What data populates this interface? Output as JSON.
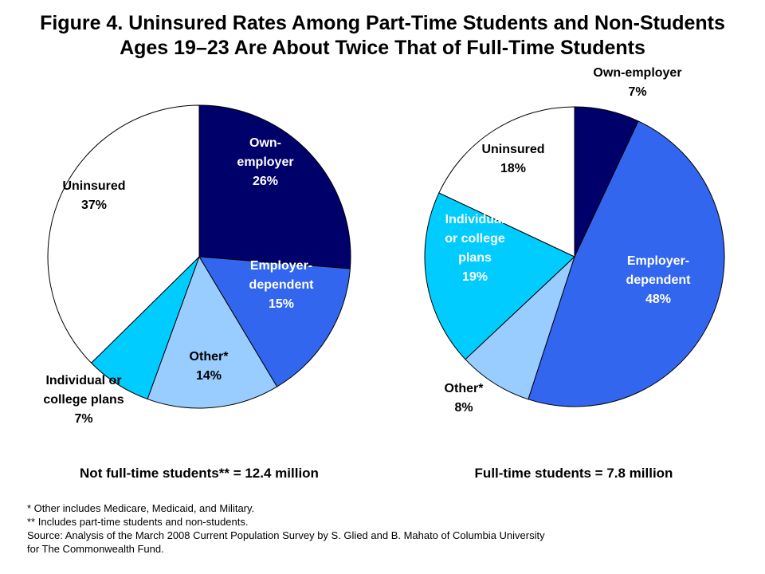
{
  "title_line1": "Figure 4. Uninsured Rates Among Part-Time Students and Non-Students",
  "title_line2": "Ages 19–23 Are About Twice That of Full-Time Students",
  "chart_data": [
    {
      "type": "pie",
      "caption": "Not full-time students** = 12.4 million",
      "slices": [
        {
          "label": [
            "Own-",
            "employer"
          ],
          "value": 26,
          "display": "26%",
          "color": "#00006b",
          "text_color": "#ffffff"
        },
        {
          "label": [
            "Employer-",
            "dependent"
          ],
          "value": 15,
          "display": "15%",
          "color": "#3366ee",
          "text_color": "#ffffff"
        },
        {
          "label": [
            "Other*"
          ],
          "value": 14,
          "display": "14%",
          "color": "#99ccff",
          "text_color": "#000000"
        },
        {
          "label": [
            "Individual or",
            "college plans"
          ],
          "value": 7,
          "display": "7%",
          "color": "#00ccff",
          "text_color": "#000000"
        },
        {
          "label": [
            "Uninsured"
          ],
          "value": 37,
          "display": "37%",
          "color": "#ffffff",
          "text_color": "#000000"
        }
      ]
    },
    {
      "type": "pie",
      "caption": "Full-time students = 7.8 million",
      "slices": [
        {
          "label": [
            "Own-employer"
          ],
          "value": 7,
          "display": "7%",
          "color": "#00006b",
          "text_color": "#000000"
        },
        {
          "label": [
            "Employer-",
            "dependent"
          ],
          "value": 48,
          "display": "48%",
          "color": "#3366ee",
          "text_color": "#ffffff"
        },
        {
          "label": [
            "Other*"
          ],
          "value": 8,
          "display": "8%",
          "color": "#99ccff",
          "text_color": "#000000"
        },
        {
          "label": [
            "Individual",
            "or college",
            "plans"
          ],
          "value": 19,
          "display": "19%",
          "color": "#00ccff",
          "text_color": "#ffffff"
        },
        {
          "label": [
            "Uninsured"
          ],
          "value": 18,
          "display": "18%",
          "color": "#ffffff",
          "text_color": "#000000"
        }
      ]
    }
  ],
  "footnotes": [
    "* Other includes Medicare, Medicaid, and Military.",
    "** Includes part-time students and non-students.",
    "Source: Analysis of the March 2008 Current Population Survey by S. Glied and B. Mahato of Columbia University",
    "for The Commonwealth Fund."
  ]
}
